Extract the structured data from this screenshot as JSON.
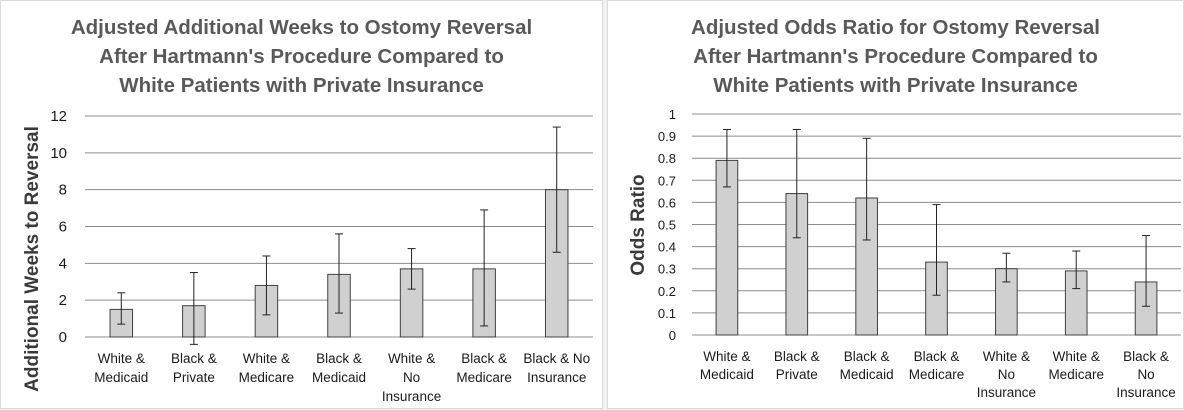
{
  "colors": {
    "bar": "#d0d0d0",
    "bar_stroke": "#404040",
    "grid": "#8c8c8c",
    "title": "#595959",
    "text": "#1a1a1a"
  },
  "chart_data": [
    {
      "type": "bar",
      "title": "Adjusted Additional Weeks to Ostomy Reversal After Hartmann's Procedure Compared to White Patients with Private Insurance",
      "title_lines": [
        "Adjusted Additional Weeks to Ostomy Reversal",
        "After Hartmann's Procedure Compared to",
        "White Patients with Private Insurance"
      ],
      "xlabel": "",
      "ylabel": "Additional Weeks  to Reversal",
      "ylim": [
        0,
        12
      ],
      "yticks": [
        "0",
        "2",
        "4",
        "6",
        "8",
        "10",
        "12"
      ],
      "grid": true,
      "legend": "none",
      "categories": [
        [
          "White &",
          "Medicaid"
        ],
        [
          "Black &",
          "Private"
        ],
        [
          "White &",
          "Medicare"
        ],
        [
          "Black &",
          "Medicaid"
        ],
        [
          "White &",
          "No",
          "Insurance"
        ],
        [
          "Black &",
          "Medicare"
        ],
        [
          "Black & No",
          "Insurance"
        ]
      ],
      "values": [
        1.5,
        1.7,
        2.8,
        3.4,
        3.7,
        3.7,
        8.0
      ],
      "error_low": [
        0.7,
        -0.4,
        1.2,
        1.3,
        2.6,
        0.6,
        4.6
      ],
      "error_high": [
        2.4,
        3.5,
        4.4,
        5.6,
        4.8,
        6.9,
        11.4
      ]
    },
    {
      "type": "bar",
      "title": "Adjusted Odds Ratio for Ostomy Reversal After Hartmann's Procedure Compared to White Patients with Private Insurance",
      "title_lines": [
        "Adjusted Odds Ratio for Ostomy Reversal",
        "After Hartmann's Procedure Compared to",
        "White Patients with Private Insurance"
      ],
      "xlabel": "",
      "ylabel": "Odds Ratio",
      "ylim": [
        0,
        1
      ],
      "yticks": [
        "0",
        "0.1",
        "0.2",
        "0.3",
        "0.4",
        "0.5",
        "0.6",
        "0.7",
        "0.8",
        "0.9",
        "1"
      ],
      "grid": true,
      "legend": "none",
      "categories": [
        [
          "White &",
          "Medicaid"
        ],
        [
          "Black &",
          "Private"
        ],
        [
          "Black &",
          "Medicaid"
        ],
        [
          "Black &",
          "Medicare"
        ],
        [
          "White &",
          "No",
          "Insurance"
        ],
        [
          "White &",
          "Medicare"
        ],
        [
          "Black &",
          "No",
          "Insurance"
        ]
      ],
      "values": [
        0.79,
        0.64,
        0.62,
        0.33,
        0.3,
        0.29,
        0.24
      ],
      "error_low": [
        0.67,
        0.44,
        0.43,
        0.18,
        0.24,
        0.21,
        0.13
      ],
      "error_high": [
        0.93,
        0.93,
        0.89,
        0.59,
        0.37,
        0.38,
        0.45
      ]
    }
  ]
}
